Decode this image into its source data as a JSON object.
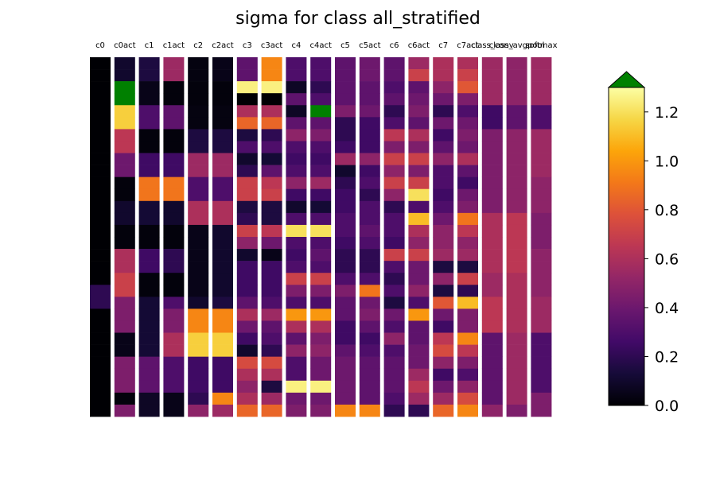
{
  "chart_data": {
    "type": "heatmap",
    "title": "sigma for class all_stratified",
    "colormap": "inferno",
    "over_color": "#008000",
    "columns": [
      "c0",
      "c0act",
      "c1",
      "c1act",
      "c2",
      "c2act",
      "c3",
      "c3act",
      "c4",
      "c4act",
      "c5",
      "c5act",
      "c6",
      "c6act",
      "c7",
      "c7act",
      "class_conv",
      "class_avgpool",
      "softmax"
    ],
    "column_spans": [
      1,
      1,
      1,
      1,
      1,
      1,
      1,
      1,
      1,
      1,
      1,
      1,
      1,
      1,
      1,
      1,
      1,
      1,
      1
    ],
    "n_rows": 30,
    "vmin": 0.0,
    "vmax": 1.3,
    "colorbar_ticks": [
      "0.0",
      "0.2",
      "0.4",
      "0.6",
      "0.8",
      "1.0",
      "1.2"
    ],
    "colorbar_tick_values": [
      0.0,
      0.2,
      0.4,
      0.6,
      0.8,
      1.0,
      1.2
    ],
    "cells": [
      [
        0,
        0.1,
        0.15,
        0.55,
        0.03,
        0.05,
        0.35,
        0.95,
        0.3,
        0.3,
        0.35,
        0.4,
        0.35,
        0.55,
        0.6,
        0.6,
        0.55,
        0.5,
        0.55
      ],
      [
        0,
        0.1,
        0.15,
        0.55,
        0.03,
        0.05,
        0.35,
        0.95,
        0.3,
        0.3,
        0.35,
        0.4,
        0.35,
        0.7,
        0.6,
        0.7,
        0.55,
        0.5,
        0.55
      ],
      [
        0,
        1.5,
        0.05,
        0.02,
        0.02,
        0.02,
        1.25,
        1.25,
        0.08,
        0.2,
        0.35,
        0.35,
        0.3,
        0.35,
        0.5,
        0.8,
        0.55,
        0.5,
        0.55
      ],
      [
        0,
        1.5,
        0.05,
        0.02,
        0.02,
        0.02,
        0.0,
        0.0,
        0.35,
        0.3,
        0.35,
        0.35,
        0.35,
        0.4,
        0.4,
        0.45,
        0.55,
        0.5,
        0.55
      ],
      [
        0,
        1.15,
        0.3,
        0.35,
        0.03,
        0.03,
        0.6,
        0.6,
        0.08,
        1.5,
        0.45,
        0.4,
        0.2,
        0.45,
        0.2,
        0.3,
        0.25,
        0.35,
        0.3
      ],
      [
        0,
        1.15,
        0.3,
        0.35,
        0.03,
        0.03,
        0.85,
        0.85,
        0.35,
        0.35,
        0.2,
        0.25,
        0.3,
        0.35,
        0.4,
        0.4,
        0.25,
        0.35,
        0.3
      ],
      [
        0,
        0.65,
        0.02,
        0.02,
        0.15,
        0.15,
        0.15,
        0.2,
        0.5,
        0.45,
        0.2,
        0.25,
        0.65,
        0.6,
        0.25,
        0.45,
        0.45,
        0.5,
        0.55
      ],
      [
        0,
        0.65,
        0.02,
        0.02,
        0.15,
        0.15,
        0.3,
        0.3,
        0.3,
        0.3,
        0.25,
        0.25,
        0.45,
        0.45,
        0.35,
        0.4,
        0.45,
        0.5,
        0.55
      ],
      [
        0,
        0.4,
        0.25,
        0.25,
        0.55,
        0.55,
        0.1,
        0.12,
        0.25,
        0.25,
        0.55,
        0.5,
        0.7,
        0.7,
        0.5,
        0.6,
        0.45,
        0.5,
        0.55
      ],
      [
        0,
        0.4,
        0.25,
        0.25,
        0.55,
        0.55,
        0.2,
        0.35,
        0.3,
        0.3,
        0.1,
        0.25,
        0.5,
        0.45,
        0.3,
        0.35,
        0.45,
        0.5,
        0.55
      ],
      [
        0,
        0.02,
        0.9,
        0.9,
        0.3,
        0.3,
        0.7,
        0.65,
        0.5,
        0.55,
        0.2,
        0.3,
        0.7,
        0.7,
        0.3,
        0.25,
        0.45,
        0.5,
        0.5
      ],
      [
        0,
        0.02,
        0.9,
        0.9,
        0.3,
        0.3,
        0.7,
        0.7,
        0.25,
        0.25,
        0.25,
        0.2,
        0.5,
        1.2,
        0.25,
        0.4,
        0.45,
        0.5,
        0.5
      ],
      [
        0,
        0.1,
        0.12,
        0.1,
        0.6,
        0.6,
        0.15,
        0.15,
        0.1,
        0.12,
        0.25,
        0.3,
        0.2,
        0.3,
        0.3,
        0.45,
        0.45,
        0.5,
        0.5
      ],
      [
        0,
        0.1,
        0.12,
        0.1,
        0.6,
        0.6,
        0.2,
        0.15,
        0.3,
        0.3,
        0.3,
        0.3,
        0.3,
        1.1,
        0.4,
        0.9,
        0.6,
        0.65,
        0.45
      ],
      [
        0,
        0.02,
        0.02,
        0.02,
        0.05,
        0.1,
        0.7,
        0.65,
        1.2,
        1.2,
        0.3,
        0.35,
        0.3,
        0.6,
        0.5,
        0.65,
        0.6,
        0.65,
        0.45
      ],
      [
        0,
        0.02,
        0.02,
        0.02,
        0.05,
        0.1,
        0.5,
        0.4,
        0.3,
        0.3,
        0.25,
        0.3,
        0.25,
        0.5,
        0.5,
        0.5,
        0.6,
        0.65,
        0.45
      ],
      [
        0,
        0.6,
        0.25,
        0.2,
        0.05,
        0.1,
        0.1,
        0.05,
        0.25,
        0.35,
        0.2,
        0.2,
        0.7,
        0.7,
        0.55,
        0.55,
        0.6,
        0.65,
        0.5
      ],
      [
        0,
        0.6,
        0.25,
        0.2,
        0.05,
        0.1,
        0.25,
        0.25,
        0.3,
        0.3,
        0.2,
        0.2,
        0.3,
        0.4,
        0.15,
        0.15,
        0.6,
        0.65,
        0.5
      ],
      [
        0,
        0.7,
        0.02,
        0.02,
        0.05,
        0.1,
        0.25,
        0.25,
        0.7,
        0.7,
        0.3,
        0.3,
        0.2,
        0.4,
        0.5,
        0.7,
        0.55,
        0.6,
        0.5
      ],
      [
        0.2,
        0.7,
        0.02,
        0.02,
        0.05,
        0.1,
        0.25,
        0.25,
        0.45,
        0.45,
        0.45,
        0.9,
        0.3,
        0.5,
        0.15,
        0.2,
        0.55,
        0.6,
        0.5
      ],
      [
        0.2,
        0.45,
        0.12,
        0.3,
        0.1,
        0.15,
        0.35,
        0.3,
        0.3,
        0.3,
        0.35,
        0.4,
        0.15,
        0.3,
        0.8,
        1.1,
        0.65,
        0.6,
        0.55
      ],
      [
        0,
        0.45,
        0.12,
        0.45,
        0.95,
        0.95,
        0.6,
        0.55,
        1.0,
        1.0,
        0.35,
        0.45,
        0.4,
        1.0,
        0.4,
        0.45,
        0.65,
        0.6,
        0.55
      ],
      [
        0,
        0.45,
        0.12,
        0.45,
        0.95,
        0.95,
        0.4,
        0.35,
        0.6,
        0.6,
        0.25,
        0.35,
        0.3,
        0.35,
        0.25,
        0.45,
        0.65,
        0.6,
        0.55
      ],
      [
        0,
        0.05,
        0.12,
        0.6,
        1.15,
        1.15,
        0.25,
        0.3,
        0.35,
        0.45,
        0.25,
        0.25,
        0.5,
        0.35,
        0.65,
        0.95,
        0.35,
        0.55,
        0.3
      ],
      [
        0,
        0.05,
        0.12,
        0.6,
        1.15,
        1.15,
        0.1,
        0.2,
        0.5,
        0.5,
        0.35,
        0.3,
        0.3,
        0.4,
        0.75,
        0.65,
        0.35,
        0.55,
        0.3
      ],
      [
        0,
        0.45,
        0.35,
        0.3,
        0.25,
        0.25,
        0.75,
        0.75,
        0.3,
        0.4,
        0.4,
        0.35,
        0.35,
        0.4,
        0.5,
        0.45,
        0.35,
        0.55,
        0.3
      ],
      [
        0,
        0.45,
        0.35,
        0.3,
        0.25,
        0.25,
        0.6,
        0.6,
        0.3,
        0.4,
        0.4,
        0.35,
        0.35,
        0.55,
        0.25,
        0.3,
        0.35,
        0.55,
        0.3
      ],
      [
        0,
        0.45,
        0.35,
        0.3,
        0.25,
        0.25,
        0.5,
        0.15,
        1.25,
        1.25,
        0.4,
        0.35,
        0.35,
        0.65,
        0.4,
        0.5,
        0.35,
        0.55,
        0.3
      ],
      [
        0,
        0.02,
        0.08,
        0.05,
        0.2,
        0.95,
        0.6,
        0.55,
        0.4,
        0.4,
        0.4,
        0.35,
        0.3,
        0.55,
        0.55,
        0.75,
        0.35,
        0.55,
        0.45
      ],
      [
        0,
        0.45,
        0.08,
        0.05,
        0.5,
        0.55,
        0.85,
        0.85,
        0.45,
        0.45,
        0.95,
        0.95,
        0.2,
        0.2,
        0.85,
        0.95,
        0.5,
        0.45,
        0.45
      ]
    ]
  }
}
